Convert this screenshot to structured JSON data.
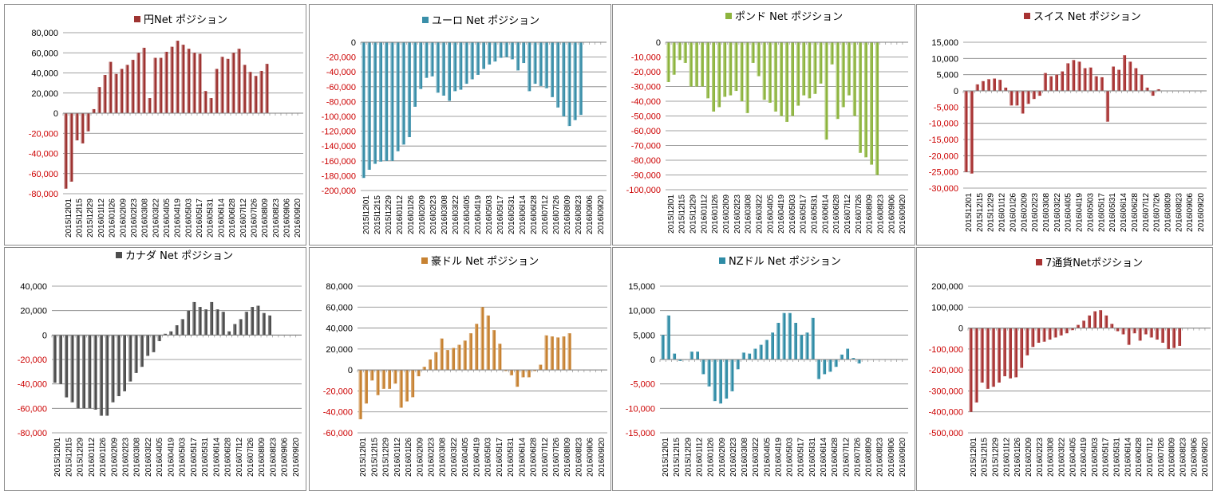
{
  "palette": {
    "positive": "#000000",
    "negative": "#cc0000",
    "axis": "#808080",
    "grid": "#808080"
  },
  "chart_data": [
    {
      "type": "bar",
      "title": "円Net ポジション",
      "color": "#9e3432",
      "ylim": [
        -80000,
        80000
      ],
      "yticks": [
        -80000,
        -60000,
        -40000,
        -20000,
        0,
        20000,
        40000,
        60000,
        80000
      ],
      "values": [
        -75000,
        -68000,
        -27000,
        -30000,
        -18000,
        4000,
        26000,
        38000,
        51000,
        39000,
        44000,
        48000,
        53000,
        60000,
        65000,
        15000,
        55000,
        55000,
        61000,
        66000,
        72000,
        68000,
        64000,
        60000,
        59000,
        22000,
        15000,
        44000,
        56000,
        54000,
        60000,
        64000,
        48000,
        41000,
        37000,
        42000,
        49000,
        null,
        null,
        null,
        null,
        null,
        null
      ]
    },
    {
      "type": "bar",
      "title": "ユーロ Net ポジション",
      "color": "#3a8fa9",
      "ylim": [
        -200000,
        0
      ],
      "yticks": [
        -200000,
        -180000,
        -160000,
        -140000,
        -120000,
        -100000,
        -80000,
        -60000,
        -40000,
        -20000,
        0
      ],
      "values": [
        -183000,
        -172000,
        -164000,
        -161000,
        -160000,
        -160000,
        -147000,
        -138000,
        -128000,
        -87000,
        -63000,
        -48000,
        -46000,
        -68000,
        -72000,
        -79000,
        -66000,
        -64000,
        -56000,
        -50000,
        -44000,
        -36000,
        -30000,
        -26000,
        -21000,
        -20000,
        -23000,
        -38000,
        -28000,
        -66000,
        -56000,
        -59000,
        -62000,
        -74000,
        -88000,
        -100000,
        -113000,
        -105000,
        -98000,
        null,
        null,
        null,
        null
      ]
    },
    {
      "type": "bar",
      "title": "ポンド Net ポジション",
      "color": "#8db43e",
      "ylim": [
        -100000,
        0
      ],
      "yticks": [
        -100000,
        -90000,
        -80000,
        -70000,
        -60000,
        -50000,
        -40000,
        -30000,
        -20000,
        -10000,
        0
      ],
      "values": [
        -27000,
        -22000,
        -12000,
        -14000,
        -30000,
        -30000,
        -30000,
        -38000,
        -47000,
        -44000,
        -37000,
        -36000,
        -33000,
        -40000,
        -48000,
        -14000,
        -23000,
        -39000,
        -41000,
        -47000,
        -50000,
        -54000,
        -50000,
        -43000,
        -36000,
        -38000,
        -35000,
        -28000,
        -66000,
        -15000,
        -52000,
        -44000,
        -36000,
        -50000,
        -75000,
        -78000,
        -83000,
        -90000,
        null,
        null,
        null,
        null,
        null
      ]
    },
    {
      "type": "bar",
      "title": "スイス Net ポジション",
      "color": "#a83232",
      "ylim": [
        -30000,
        15000
      ],
      "yticks": [
        -30000,
        -25000,
        -20000,
        -15000,
        -10000,
        -5000,
        0,
        5000,
        10000,
        15000
      ],
      "values": [
        -25000,
        -25500,
        2000,
        3000,
        3600,
        3800,
        3400,
        1000,
        -4500,
        -4500,
        -7000,
        -4000,
        -2500,
        -1500,
        5500,
        4500,
        5000,
        6000,
        8500,
        9500,
        9000,
        7000,
        7200,
        4500,
        4200,
        -9500,
        7500,
        6500,
        11000,
        9000,
        7000,
        5000,
        1000,
        -1500,
        500,
        null,
        null,
        null,
        null,
        null,
        null,
        null,
        null
      ]
    },
    {
      "type": "bar",
      "title": "カナダ Net ポジション",
      "color": "#4d4d4d",
      "ylim": [
        -80000,
        40000
      ],
      "yticks": [
        -80000,
        -60000,
        -40000,
        -20000,
        0,
        20000,
        40000
      ],
      "values": [
        -39000,
        -40000,
        -51000,
        -55000,
        -60000,
        -60000,
        -60000,
        -61000,
        -66000,
        -66000,
        -55000,
        -50000,
        -46000,
        -38000,
        -31000,
        -26000,
        -17000,
        -14000,
        -5000,
        1000,
        3000,
        8000,
        13000,
        20000,
        27000,
        23000,
        21000,
        27000,
        21000,
        19000,
        3000,
        9000,
        13000,
        19000,
        23000,
        24000,
        18000,
        16000,
        null,
        null,
        null,
        null,
        null
      ]
    },
    {
      "type": "bar",
      "title": "豪ドル Net ポジション",
      "color": "#c78232",
      "ylim": [
        -60000,
        80000
      ],
      "yticks": [
        -60000,
        -40000,
        -20000,
        0,
        20000,
        40000,
        60000,
        80000
      ],
      "values": [
        -47000,
        -32000,
        -10000,
        -24000,
        -18000,
        -18000,
        -13000,
        -36000,
        -30000,
        -26000,
        -6000,
        3000,
        10000,
        17000,
        30000,
        19000,
        21000,
        24000,
        28000,
        35000,
        44000,
        60000,
        52000,
        38000,
        25000,
        -1000,
        -5000,
        -16000,
        -7000,
        -7000,
        -1000,
        5000,
        33000,
        32000,
        31000,
        32000,
        35000,
        null,
        null,
        null,
        null,
        null,
        null
      ]
    },
    {
      "type": "bar",
      "title": "NZドル Net ポジション",
      "color": "#2f8ca6",
      "ylim": [
        -15000,
        15000
      ],
      "yticks": [
        -15000,
        -10000,
        -5000,
        0,
        5000,
        10000,
        15000
      ],
      "values": [
        5000,
        9000,
        1200,
        -300,
        -100,
        1600,
        1600,
        -3000,
        -5500,
        -8500,
        -9000,
        -8000,
        -6500,
        -2000,
        1400,
        1200,
        2200,
        3000,
        4000,
        5500,
        7500,
        9500,
        9500,
        7500,
        5000,
        5500,
        8500,
        -4000,
        -3000,
        -2500,
        -1500,
        1000,
        2200,
        300,
        -800,
        null,
        null,
        null,
        null,
        null,
        null,
        null,
        null
      ]
    },
    {
      "type": "bar",
      "title": "7通貨Netポジション",
      "color": "#a83232",
      "ylim": [
        -500000,
        200000
      ],
      "yticks": [
        -500000,
        -400000,
        -300000,
        -200000,
        -100000,
        0,
        100000,
        200000
      ],
      "values": [
        -400000,
        -355000,
        -260000,
        -290000,
        -280000,
        -260000,
        -230000,
        -240000,
        -235000,
        -190000,
        -130000,
        -90000,
        -70000,
        -65000,
        -55000,
        -45000,
        -35000,
        -25000,
        -10000,
        15000,
        35000,
        60000,
        80000,
        85000,
        60000,
        20000,
        -15000,
        -30000,
        -80000,
        -25000,
        -60000,
        -30000,
        -45000,
        -55000,
        -70000,
        -100000,
        -95000,
        -85000,
        null,
        null,
        null,
        null,
        null
      ]
    }
  ],
  "x_labels": [
    "2015l12l01",
    "2015l12l15",
    "2015l12l29",
    "2016l01l12",
    "2016l01l26",
    "2016l02l09",
    "2016l02l23",
    "2016l03l08",
    "2016l03l22",
    "2016l04l05",
    "2016l04l19",
    "2016l05l03",
    "2016l05l17",
    "2016l05l31",
    "2016l06l14",
    "2016l06l28",
    "2016l07l12",
    "2016l07l26",
    "2016l08l09",
    "2016l08l23",
    "2016l09l06",
    "2016l09l20"
  ]
}
